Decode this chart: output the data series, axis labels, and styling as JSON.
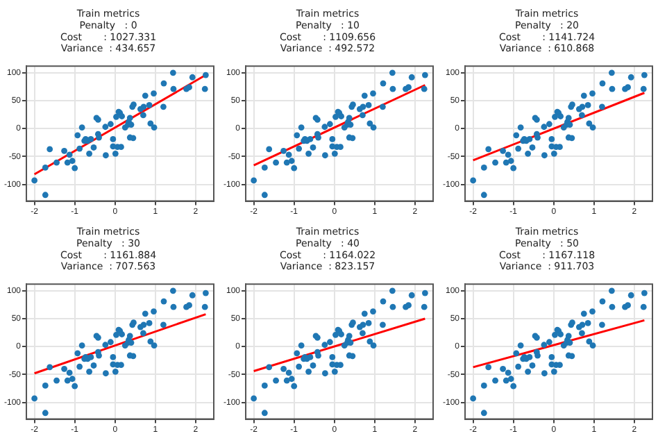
{
  "chart_data": [
    {
      "type": "scatter",
      "title": "Train metrics\nPenalty   : 0\nCost       : 1027.331\nVariance  : 434.657",
      "xlim": [
        -2.2,
        2.45
      ],
      "ylim": [
        -130,
        112
      ],
      "xticks": [
        -2,
        -1,
        0,
        1,
        2
      ],
      "yticks": [
        -100,
        -50,
        0,
        50,
        100
      ],
      "grid": true,
      "series": [
        {
          "type": "scatter",
          "marker": "circle",
          "color": "#1f77b4",
          "x": [
            -2.0,
            -1.73,
            -1.73,
            -1.62,
            -1.45,
            -1.26,
            -1.18,
            -1.13,
            -1.06,
            -1.0,
            -0.93,
            -0.88,
            -0.82,
            -0.76,
            -0.73,
            -0.68,
            -0.64,
            -0.6,
            -0.53,
            -0.46,
            -0.42,
            -0.42,
            -0.4,
            -0.23,
            -0.24,
            -0.11,
            -0.05,
            -0.05,
            0.01,
            0.06,
            0.15,
            0.03,
            0.09,
            0.12,
            0.17,
            0.25,
            0.32,
            0.34,
            0.37,
            0.4,
            0.37,
            0.45,
            0.43,
            0.46,
            0.63,
            0.71,
            0.75,
            0.7,
            0.85,
            0.88,
            0.97,
            0.96,
            1.21,
            1.2,
            1.44,
            1.45,
            1.77,
            1.84,
            1.92,
            2.23,
            2.25
          ],
          "values": [
            -93,
            -119,
            -70,
            -37,
            -61,
            -40,
            -61,
            -47,
            -58,
            -71,
            -12,
            -36,
            2,
            -22,
            -19,
            -22,
            -45,
            -19,
            -34,
            19,
            16,
            -10,
            -16,
            -48,
            3,
            8,
            -19,
            -32,
            -45,
            -33,
            -33,
            21,
            30,
            28,
            22,
            2,
            7,
            12,
            19,
            7,
            -16,
            -17,
            39,
            43,
            35,
            39,
            59,
            24,
            42,
            9,
            2,
            63,
            81,
            39,
            100,
            71,
            71,
            74,
            92,
            71,
            96
          ]
        },
        {
          "type": "line",
          "marker": "none",
          "color": "#ff0000",
          "x": [
            -2.0,
            2.25
          ],
          "values": [
            -82,
            96
          ]
        }
      ]
    },
    {
      "type": "scatter",
      "title": "Train metrics\nPenalty   : 10\nCost       : 1109.656\nVariance  : 492.572",
      "xlim": [
        -2.2,
        2.45
      ],
      "ylim": [
        -130,
        112
      ],
      "xticks": [
        -2,
        -1,
        0,
        1,
        2
      ],
      "yticks": [
        -100,
        -50,
        0,
        50,
        100
      ],
      "grid": true,
      "series": [
        {
          "type": "scatter",
          "marker": "circle",
          "color": "#1f77b4",
          "x": [
            -2.0,
            -1.73,
            -1.73,
            -1.62,
            -1.45,
            -1.26,
            -1.18,
            -1.13,
            -1.06,
            -1.0,
            -0.93,
            -0.88,
            -0.82,
            -0.76,
            -0.73,
            -0.68,
            -0.64,
            -0.6,
            -0.53,
            -0.46,
            -0.42,
            -0.42,
            -0.4,
            -0.23,
            -0.24,
            -0.11,
            -0.05,
            -0.05,
            0.01,
            0.06,
            0.15,
            0.03,
            0.09,
            0.12,
            0.17,
            0.25,
            0.32,
            0.34,
            0.37,
            0.4,
            0.37,
            0.45,
            0.43,
            0.46,
            0.63,
            0.71,
            0.75,
            0.7,
            0.85,
            0.88,
            0.97,
            0.96,
            1.21,
            1.2,
            1.44,
            1.45,
            1.77,
            1.84,
            1.92,
            2.23,
            2.25
          ],
          "values": [
            -93,
            -119,
            -70,
            -37,
            -61,
            -40,
            -61,
            -47,
            -58,
            -71,
            -12,
            -36,
            2,
            -22,
            -19,
            -22,
            -45,
            -19,
            -34,
            19,
            16,
            -10,
            -16,
            -48,
            3,
            8,
            -19,
            -32,
            -45,
            -33,
            -33,
            21,
            30,
            28,
            22,
            2,
            7,
            12,
            19,
            7,
            -16,
            -17,
            39,
            43,
            35,
            39,
            59,
            24,
            42,
            9,
            2,
            63,
            81,
            39,
            100,
            71,
            71,
            74,
            92,
            71,
            96
          ]
        },
        {
          "type": "line",
          "marker": "none",
          "color": "#ff0000",
          "x": [
            -2.0,
            2.25
          ],
          "values": [
            -66,
            78
          ]
        }
      ]
    },
    {
      "type": "scatter",
      "title": "Train metrics\nPenalty   : 20\nCost       : 1141.724\nVariance  : 610.868",
      "xlim": [
        -2.2,
        2.45
      ],
      "ylim": [
        -130,
        112
      ],
      "xticks": [
        -2,
        -1,
        0,
        1,
        2
      ],
      "yticks": [
        -100,
        -50,
        0,
        50,
        100
      ],
      "grid": true,
      "series": [
        {
          "type": "scatter",
          "marker": "circle",
          "color": "#1f77b4",
          "x": [
            -2.0,
            -1.73,
            -1.73,
            -1.62,
            -1.45,
            -1.26,
            -1.18,
            -1.13,
            -1.06,
            -1.0,
            -0.93,
            -0.88,
            -0.82,
            -0.76,
            -0.73,
            -0.68,
            -0.64,
            -0.6,
            -0.53,
            -0.46,
            -0.42,
            -0.42,
            -0.4,
            -0.23,
            -0.24,
            -0.11,
            -0.05,
            -0.05,
            0.01,
            0.06,
            0.15,
            0.03,
            0.09,
            0.12,
            0.17,
            0.25,
            0.32,
            0.34,
            0.37,
            0.4,
            0.37,
            0.45,
            0.43,
            0.46,
            0.63,
            0.71,
            0.75,
            0.7,
            0.85,
            0.88,
            0.97,
            0.96,
            1.21,
            1.2,
            1.44,
            1.45,
            1.77,
            1.84,
            1.92,
            2.23,
            2.25
          ],
          "values": [
            -93,
            -119,
            -70,
            -37,
            -61,
            -40,
            -61,
            -47,
            -58,
            -71,
            -12,
            -36,
            2,
            -22,
            -19,
            -22,
            -45,
            -19,
            -34,
            19,
            16,
            -10,
            -16,
            -48,
            3,
            8,
            -19,
            -32,
            -45,
            -33,
            -33,
            21,
            30,
            28,
            22,
            2,
            7,
            12,
            19,
            7,
            -16,
            -17,
            39,
            43,
            35,
            39,
            59,
            24,
            42,
            9,
            2,
            63,
            81,
            39,
            100,
            71,
            71,
            74,
            92,
            71,
            96
          ]
        },
        {
          "type": "line",
          "marker": "none",
          "color": "#ff0000",
          "x": [
            -2.0,
            2.25
          ],
          "values": [
            -57,
            64
          ]
        }
      ]
    },
    {
      "type": "scatter",
      "title": "Train metrics\nPenalty   : 30\nCost       : 1161.884\nVariance  : 707.563",
      "xlim": [
        -2.2,
        2.45
      ],
      "ylim": [
        -130,
        112
      ],
      "xticks": [
        -2,
        -1,
        0,
        1,
        2
      ],
      "yticks": [
        -100,
        -50,
        0,
        50,
        100
      ],
      "grid": true,
      "series": [
        {
          "type": "scatter",
          "marker": "circle",
          "color": "#1f77b4",
          "x": [
            -2.0,
            -1.73,
            -1.73,
            -1.62,
            -1.45,
            -1.26,
            -1.18,
            -1.13,
            -1.06,
            -1.0,
            -0.93,
            -0.88,
            -0.82,
            -0.76,
            -0.73,
            -0.68,
            -0.64,
            -0.6,
            -0.53,
            -0.46,
            -0.42,
            -0.42,
            -0.4,
            -0.23,
            -0.24,
            -0.11,
            -0.05,
            -0.05,
            0.01,
            0.06,
            0.15,
            0.03,
            0.09,
            0.12,
            0.17,
            0.25,
            0.32,
            0.34,
            0.37,
            0.4,
            0.37,
            0.45,
            0.43,
            0.46,
            0.63,
            0.71,
            0.75,
            0.7,
            0.85,
            0.88,
            0.97,
            0.96,
            1.21,
            1.2,
            1.44,
            1.45,
            1.77,
            1.84,
            1.92,
            2.23,
            2.25
          ],
          "values": [
            -93,
            -119,
            -70,
            -37,
            -61,
            -40,
            -61,
            -47,
            -58,
            -71,
            -12,
            -36,
            2,
            -22,
            -19,
            -22,
            -45,
            -19,
            -34,
            19,
            16,
            -10,
            -16,
            -48,
            3,
            8,
            -19,
            -32,
            -45,
            -33,
            -33,
            21,
            30,
            28,
            22,
            2,
            7,
            12,
            19,
            7,
            -16,
            -17,
            39,
            43,
            35,
            39,
            59,
            24,
            42,
            9,
            2,
            63,
            81,
            39,
            100,
            71,
            71,
            74,
            92,
            71,
            96
          ]
        },
        {
          "type": "line",
          "marker": "none",
          "color": "#ff0000",
          "x": [
            -2.0,
            2.25
          ],
          "values": [
            -48,
            58
          ]
        }
      ]
    },
    {
      "type": "scatter",
      "title": "Train metrics\nPenalty   : 40\nCost       : 1164.022\nVariance  : 823.157",
      "xlim": [
        -2.2,
        2.45
      ],
      "ylim": [
        -130,
        112
      ],
      "xticks": [
        -2,
        -1,
        0,
        1,
        2
      ],
      "yticks": [
        -100,
        -50,
        0,
        50,
        100
      ],
      "grid": true,
      "series": [
        {
          "type": "scatter",
          "marker": "circle",
          "color": "#1f77b4",
          "x": [
            -2.0,
            -1.73,
            -1.73,
            -1.62,
            -1.45,
            -1.26,
            -1.18,
            -1.13,
            -1.06,
            -1.0,
            -0.93,
            -0.88,
            -0.82,
            -0.76,
            -0.73,
            -0.68,
            -0.64,
            -0.6,
            -0.53,
            -0.46,
            -0.42,
            -0.42,
            -0.4,
            -0.23,
            -0.24,
            -0.11,
            -0.05,
            -0.05,
            0.01,
            0.06,
            0.15,
            0.03,
            0.09,
            0.12,
            0.17,
            0.25,
            0.32,
            0.34,
            0.37,
            0.4,
            0.37,
            0.45,
            0.43,
            0.46,
            0.63,
            0.71,
            0.75,
            0.7,
            0.85,
            0.88,
            0.97,
            0.96,
            1.21,
            1.2,
            1.44,
            1.45,
            1.77,
            1.84,
            1.92,
            2.23,
            2.25
          ],
          "values": [
            -93,
            -119,
            -70,
            -37,
            -61,
            -40,
            -61,
            -47,
            -58,
            -71,
            -12,
            -36,
            2,
            -22,
            -19,
            -22,
            -45,
            -19,
            -34,
            19,
            16,
            -10,
            -16,
            -48,
            3,
            8,
            -19,
            -32,
            -45,
            -33,
            -33,
            21,
            30,
            28,
            22,
            2,
            7,
            12,
            19,
            7,
            -16,
            -17,
            39,
            43,
            35,
            39,
            59,
            24,
            42,
            9,
            2,
            63,
            81,
            39,
            100,
            71,
            71,
            74,
            92,
            71,
            96
          ]
        },
        {
          "type": "line",
          "marker": "none",
          "color": "#ff0000",
          "x": [
            -2.0,
            2.25
          ],
          "values": [
            -44,
            50
          ]
        }
      ]
    },
    {
      "type": "scatter",
      "title": "Train metrics\nPenalty   : 50\nCost       : 1167.118\nVariance  : 911.703",
      "xlim": [
        -2.2,
        2.45
      ],
      "ylim": [
        -130,
        112
      ],
      "xticks": [
        -2,
        -1,
        0,
        1,
        2
      ],
      "yticks": [
        -100,
        -50,
        0,
        50,
        100
      ],
      "grid": true,
      "series": [
        {
          "type": "scatter",
          "marker": "circle",
          "color": "#1f77b4",
          "x": [
            -2.0,
            -1.73,
            -1.73,
            -1.62,
            -1.45,
            -1.26,
            -1.18,
            -1.13,
            -1.06,
            -1.0,
            -0.93,
            -0.88,
            -0.82,
            -0.76,
            -0.73,
            -0.68,
            -0.64,
            -0.6,
            -0.53,
            -0.46,
            -0.42,
            -0.42,
            -0.4,
            -0.23,
            -0.24,
            -0.11,
            -0.05,
            -0.05,
            0.01,
            0.06,
            0.15,
            0.03,
            0.09,
            0.12,
            0.17,
            0.25,
            0.32,
            0.34,
            0.37,
            0.4,
            0.37,
            0.45,
            0.43,
            0.46,
            0.63,
            0.71,
            0.75,
            0.7,
            0.85,
            0.88,
            0.97,
            0.96,
            1.21,
            1.2,
            1.44,
            1.45,
            1.77,
            1.84,
            1.92,
            2.23,
            2.25
          ],
          "values": [
            -93,
            -119,
            -70,
            -37,
            -61,
            -40,
            -61,
            -47,
            -58,
            -71,
            -12,
            -36,
            2,
            -22,
            -19,
            -22,
            -45,
            -19,
            -34,
            19,
            16,
            -10,
            -16,
            -48,
            3,
            8,
            -19,
            -32,
            -45,
            -33,
            -33,
            21,
            30,
            28,
            22,
            2,
            7,
            12,
            19,
            7,
            -16,
            -17,
            39,
            43,
            35,
            39,
            59,
            24,
            42,
            9,
            2,
            63,
            81,
            39,
            100,
            71,
            71,
            74,
            92,
            71,
            96
          ]
        },
        {
          "type": "line",
          "marker": "none",
          "color": "#ff0000",
          "x": [
            -2.0,
            2.25
          ],
          "values": [
            -37,
            47
          ]
        }
      ]
    }
  ]
}
